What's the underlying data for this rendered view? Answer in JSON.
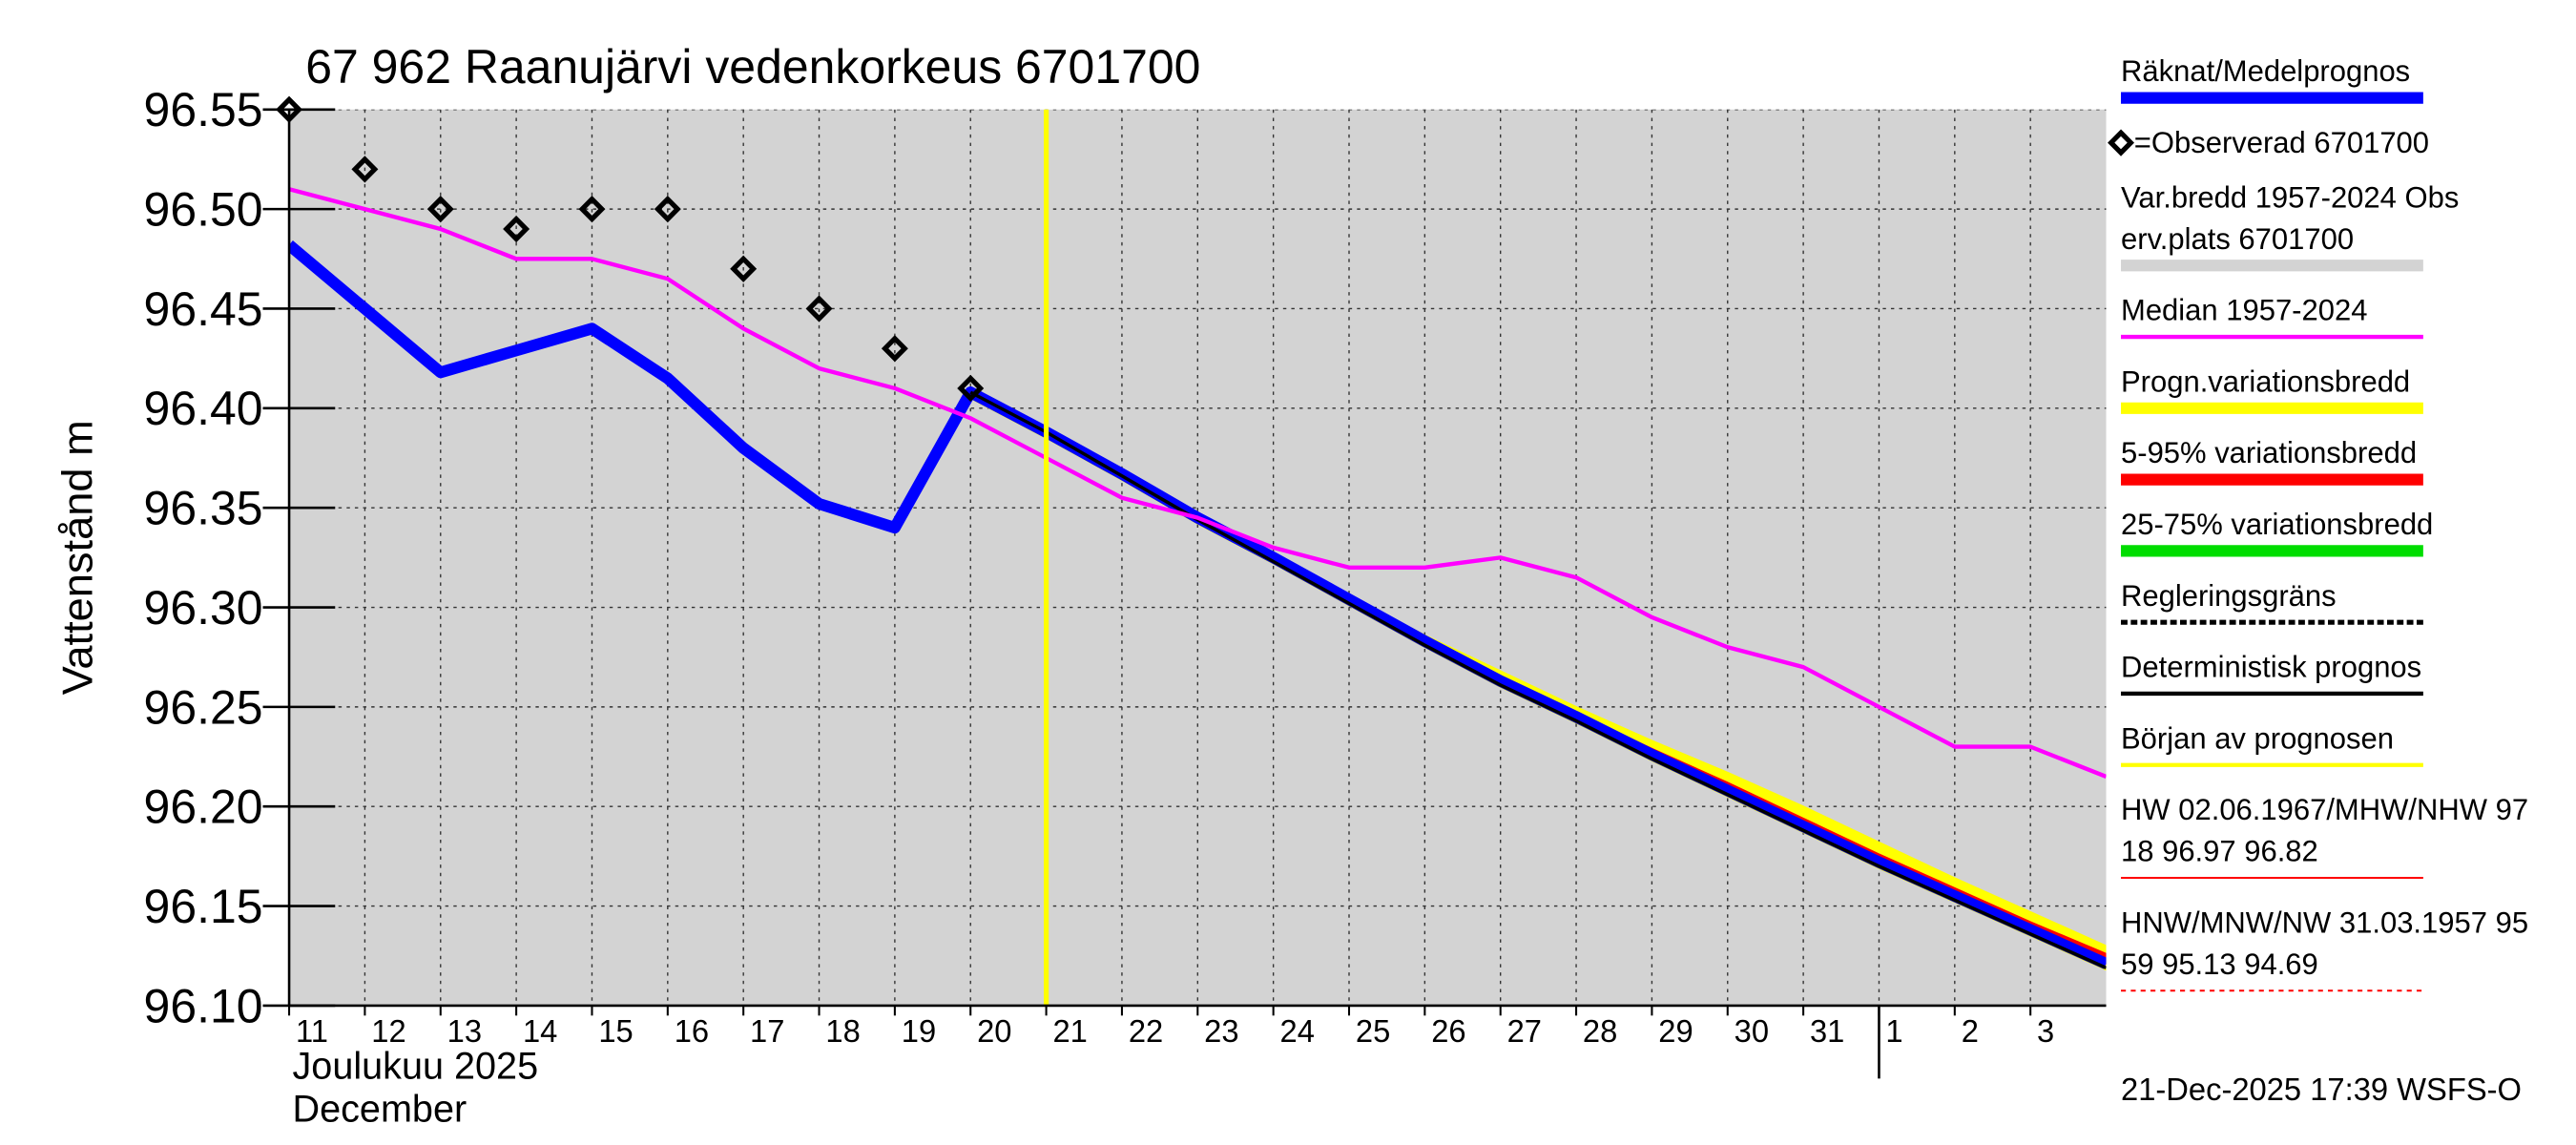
{
  "chart_data": {
    "type": "line",
    "title": "67 962 Raanujärvi vedenkorkeus 6701700",
    "ylabel": "Vattenstånd m",
    "xlabel_lines": [
      "Joulukuu  2025",
      "December"
    ],
    "footer": "21-Dec-2025 17:39 WSFS-O",
    "xlim": [
      0,
      24
    ],
    "ylim": [
      96.1,
      96.55
    ],
    "yticks": [
      {
        "value": 96.1,
        "label": "96.10"
      },
      96.15,
      {
        "value": 96.2,
        "label": "96.20"
      },
      96.25,
      {
        "value": 96.3,
        "label": "96.30"
      },
      96.35,
      {
        "value": 96.4,
        "label": "96.40"
      },
      96.45,
      {
        "value": 96.5,
        "label": "96.50"
      },
      96.55
    ],
    "xticks": [
      {
        "value": 0,
        "label": "11"
      },
      {
        "value": 1,
        "label": "12"
      },
      {
        "value": 2,
        "label": "13"
      },
      {
        "value": 3,
        "label": "14"
      },
      {
        "value": 4,
        "label": "15"
      },
      {
        "value": 5,
        "label": "16"
      },
      {
        "value": 6,
        "label": "17"
      },
      {
        "value": 7,
        "label": "18"
      },
      {
        "value": 8,
        "label": "19"
      },
      {
        "value": 9,
        "label": "20"
      },
      {
        "value": 10,
        "label": "21"
      },
      {
        "value": 11,
        "label": "22"
      },
      {
        "value": 12,
        "label": "23"
      },
      {
        "value": 13,
        "label": "24"
      },
      {
        "value": 14,
        "label": "25"
      },
      {
        "value": 15,
        "label": "26"
      },
      {
        "value": 16,
        "label": "27"
      },
      {
        "value": 17,
        "label": "28"
      },
      {
        "value": 18,
        "label": "29"
      },
      {
        "value": 19,
        "label": "30"
      },
      {
        "value": 20,
        "label": "31"
      },
      {
        "value": 21,
        "label": "1"
      },
      {
        "value": 22,
        "label": "2"
      },
      {
        "value": 23,
        "label": "3"
      }
    ],
    "month_break": 21,
    "forecast_start": 10,
    "forecast_start_color": "#ffff00",
    "grid": true,
    "background": "#d3d3d3",
    "series": [
      {
        "kind": "band",
        "color": "#ffff00",
        "x": [
          9,
          10,
          11,
          12,
          13,
          14,
          15,
          16,
          17,
          18,
          19,
          20,
          21,
          22,
          23,
          24
        ],
        "upper": [
          96.41,
          96.39,
          96.368,
          96.346,
          96.326,
          96.306,
          96.286,
          96.268,
          96.25,
          96.233,
          96.217,
          96.2,
          96.182,
          96.164,
          96.147,
          96.13
        ],
        "lower": [
          96.405,
          96.385,
          96.364,
          96.342,
          96.322,
          96.301,
          96.28,
          96.26,
          96.242,
          96.223,
          96.205,
          96.187,
          96.169,
          96.152,
          96.135,
          96.118
        ]
      },
      {
        "kind": "band",
        "color": "#ff0000",
        "x": [
          9,
          10,
          11,
          12,
          13,
          14,
          15,
          16,
          17,
          18,
          19,
          20,
          21,
          22,
          23,
          24
        ],
        "upper": [
          96.409,
          96.389,
          96.367,
          96.345,
          96.325,
          96.305,
          96.284,
          96.265,
          96.247,
          96.229,
          96.212,
          96.194,
          96.176,
          96.159,
          96.142,
          96.126
        ],
        "lower": [
          96.406,
          96.386,
          96.365,
          96.343,
          96.323,
          96.302,
          96.281,
          96.262,
          96.243,
          96.225,
          96.207,
          96.189,
          96.171,
          96.154,
          96.137,
          96.121
        ]
      },
      {
        "kind": "line",
        "color": "#0000ff",
        "width": 7,
        "x": [
          0,
          1,
          2,
          3,
          4,
          5,
          6,
          7,
          8,
          9,
          10,
          11,
          12,
          13,
          14,
          15,
          16,
          17,
          18,
          19,
          20,
          21,
          22,
          23,
          24
        ],
        "values": [
          96.482,
          96.45,
          96.418,
          96.429,
          96.44,
          96.415,
          96.38,
          96.352,
          96.34,
          96.408,
          96.388,
          96.367,
          96.345,
          96.325,
          96.304,
          96.283,
          96.263,
          96.245,
          96.226,
          96.208,
          96.19,
          96.172,
          96.155,
          96.138,
          96.121
        ]
      },
      {
        "kind": "line",
        "color": "#000000",
        "width": 2,
        "x": [
          9,
          10,
          11,
          12,
          13,
          14,
          15,
          16,
          17,
          18,
          19,
          20,
          21,
          22,
          23,
          24
        ],
        "values": [
          96.408,
          96.388,
          96.366,
          96.344,
          96.323,
          96.302,
          96.281,
          96.261,
          96.243,
          96.224,
          96.206,
          96.188,
          96.17,
          96.153,
          96.136,
          96.119
        ]
      },
      {
        "kind": "line",
        "color": "#ff00ff",
        "width": 2.5,
        "x": [
          0,
          1,
          2,
          3,
          4,
          5,
          6,
          7,
          8,
          9,
          10,
          11,
          12,
          13,
          14,
          15,
          16,
          17,
          18,
          19,
          20,
          21,
          22,
          23,
          24
        ],
        "values": [
          96.51,
          96.5,
          96.49,
          96.475,
          96.475,
          96.465,
          96.44,
          96.42,
          96.41,
          96.395,
          96.375,
          96.355,
          96.345,
          96.33,
          96.32,
          96.32,
          96.325,
          96.315,
          96.295,
          96.28,
          96.27,
          96.25,
          96.23,
          96.23,
          96.215
        ]
      },
      {
        "kind": "scatter",
        "color": "#000000",
        "x": [
          0,
          1,
          2,
          3,
          4,
          5,
          6,
          7,
          8,
          9
        ],
        "values": [
          96.55,
          96.52,
          96.5,
          96.49,
          96.5,
          96.5,
          96.47,
          96.45,
          96.43,
          96.41
        ]
      }
    ],
    "legend": [
      {
        "lines": [
          "Räknat/Medelprognos"
        ],
        "color": "#0000ff",
        "style": "thick"
      },
      {
        "lines": [
          "=Observerad 6701700"
        ],
        "color": "#000000",
        "style": "diamond"
      },
      {
        "lines": [
          "Var.bredd 1957-2024   Obs",
          "erv.plats 6701700"
        ],
        "color": "#d3d3d3",
        "style": "thick"
      },
      {
        "lines": [
          "Median 1957-2024"
        ],
        "color": "#ff00ff",
        "style": "thin"
      },
      {
        "lines": [
          "Progn.variationsbredd"
        ],
        "color": "#ffff00",
        "style": "thick"
      },
      {
        "lines": [
          "5-95% variationsbredd"
        ],
        "color": "#ff0000",
        "style": "thick"
      },
      {
        "lines": [
          "25-75% variationsbredd"
        ],
        "color": "#00dd00",
        "style": "thick"
      },
      {
        "lines": [
          "Regleringsgräns"
        ],
        "color": "#000000",
        "style": "dashed"
      },
      {
        "lines": [
          "Deterministisk prognos"
        ],
        "color": "#000000",
        "style": "thin"
      },
      {
        "lines": [
          "Början av prognosen"
        ],
        "color": "#ffff00",
        "style": "thin"
      },
      {
        "lines": [
          "HW 02.06.1967/MHW/NHW 97",
          "18 96.97 96.82"
        ],
        "color": "#ff0000",
        "style": "hair"
      },
      {
        "lines": [
          "HNW/MNW/NW 31.03.1957 95",
          "59 95.13 94.69"
        ],
        "color": "#ff0000",
        "style": "hairdash"
      }
    ]
  }
}
